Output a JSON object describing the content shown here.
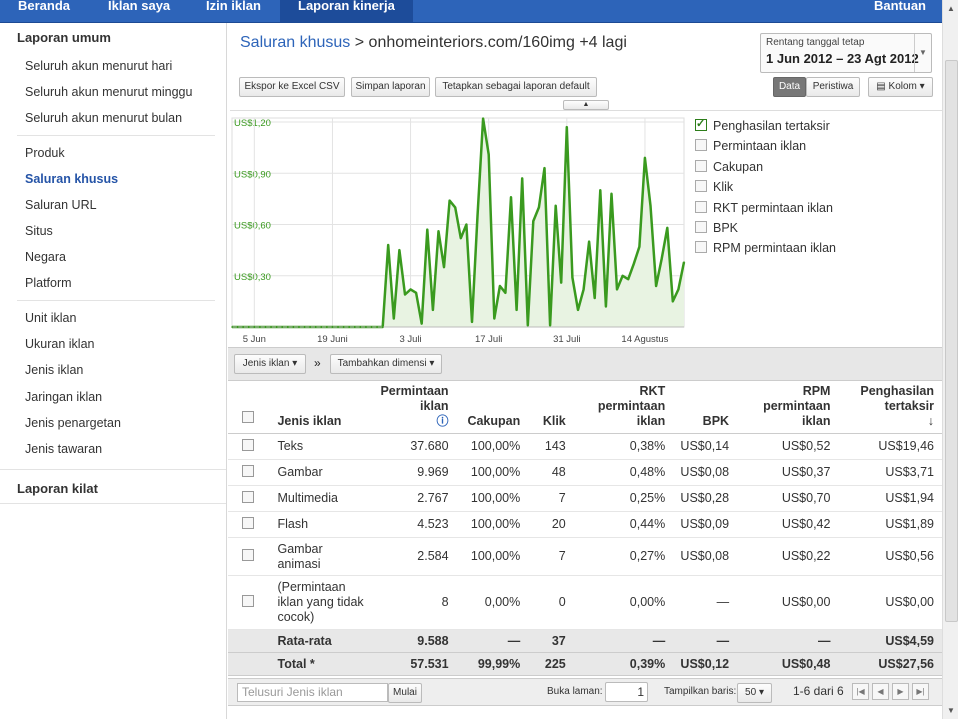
{
  "nav": {
    "tabs": [
      "Beranda",
      "Iklan saya",
      "Izin iklan",
      "Laporan kinerja"
    ],
    "help": "Bantuan"
  },
  "sidebar": {
    "heading_general": "Laporan umum",
    "items_group1": [
      "Seluruh akun menurut hari",
      "Seluruh akun menurut minggu",
      "Seluruh akun menurut bulan"
    ],
    "items_group2": [
      "Produk",
      "Saluran khusus",
      "Saluran URL",
      "Situs",
      "Negara",
      "Platform"
    ],
    "items_group3": [
      "Unit iklan",
      "Ukuran iklan",
      "Jenis iklan",
      "Jaringan iklan",
      "Jenis penargetan",
      "Jenis tawaran"
    ],
    "selected": "Saluran khusus",
    "heading_quick": "Laporan kilat"
  },
  "header": {
    "crumb_link": "Saluran khusus",
    "crumb_sep": ">",
    "crumb_rest": "onhomeinteriors.com/160img +4 lagi",
    "date_label": "Rentang tanggal tetap",
    "date_value": "1 Jun 2012 – 23 Agt 2012"
  },
  "toolbar": {
    "export": "Ekspor ke Excel CSV",
    "save": "Simpan laporan",
    "default": "Tetapkan sebagai laporan default",
    "data": "Data",
    "events": "Peristiwa",
    "columns": "Kolom"
  },
  "legend": [
    {
      "label": "Penghasilan tertaksir",
      "checked": true
    },
    {
      "label": "Permintaan iklan",
      "checked": false
    },
    {
      "label": "Cakupan",
      "checked": false
    },
    {
      "label": "Klik",
      "checked": false
    },
    {
      "label": "RKT permintaan iklan",
      "checked": false
    },
    {
      "label": "BPK",
      "checked": false
    },
    {
      "label": "RPM permintaan iklan",
      "checked": false
    }
  ],
  "chart_data": {
    "type": "area",
    "series": [
      {
        "name": "Penghasilan tertaksir",
        "color": "#3a9a1f",
        "values": [
          0,
          0,
          0,
          0,
          0,
          0,
          0,
          0,
          0,
          0,
          0,
          0,
          0,
          0,
          0,
          0,
          0,
          0,
          0,
          0,
          0,
          0,
          0,
          0,
          0,
          0,
          0,
          0,
          0.48,
          0.05,
          0.45,
          0.19,
          0.22,
          0.2,
          0.02,
          0.57,
          0.1,
          0.56,
          0.35,
          0.74,
          0.7,
          0.52,
          0.6,
          0.03,
          0.65,
          1.22,
          1.01,
          0.05,
          0.24,
          0.2,
          0.76,
          0.1,
          0.87,
          0.01,
          0.62,
          0.7,
          0.93,
          0.01,
          0.71,
          0.26,
          1.17,
          0.29,
          0.1,
          0.22,
          0.5,
          0.17,
          0.8,
          0.12,
          0.78,
          0.22,
          0.3,
          0.28,
          0.37,
          0.47,
          0.99,
          0.71,
          0.24,
          0.4,
          0.58,
          0.15,
          0.22,
          0.38
        ]
      }
    ],
    "y_ticks": [
      "US$0,30",
      "US$0,60",
      "US$0,90",
      "US$1,20"
    ],
    "y_tick_values": [
      0.3,
      0.6,
      0.9,
      1.2
    ],
    "ylim": [
      0,
      1.2
    ],
    "x_ticks": [
      "5 Jun",
      "19 Juni",
      "3 Juli",
      "17 Juli",
      "31 Juli",
      "14 Agustus"
    ],
    "x_tick_index": [
      4,
      18,
      32,
      46,
      60,
      74
    ],
    "grid": true,
    "legend": "right"
  },
  "dims": {
    "adtype": "Jenis iklan",
    "arrow": "»",
    "add": "Tambahkan dimensi"
  },
  "table": {
    "headers": [
      "Jenis iklan",
      "Permintaan iklan",
      "Cakupan",
      "Klik",
      "RKT permintaan iklan",
      "BPK",
      "RPM permintaan iklan",
      "Penghasilan tertaksir"
    ],
    "rows": [
      [
        "Teks",
        "37.680",
        "100,00%",
        "143",
        "0,38%",
        "US$0,14",
        "US$0,52",
        "US$19,46"
      ],
      [
        "Gambar",
        "9.969",
        "100,00%",
        "48",
        "0,48%",
        "US$0,08",
        "US$0,37",
        "US$3,71"
      ],
      [
        "Multimedia",
        "2.767",
        "100,00%",
        "7",
        "0,25%",
        "US$0,28",
        "US$0,70",
        "US$1,94"
      ],
      [
        "Flash",
        "4.523",
        "100,00%",
        "20",
        "0,44%",
        "US$0,09",
        "US$0,42",
        "US$1,89"
      ],
      [
        "Gambar animasi",
        "2.584",
        "100,00%",
        "7",
        "0,27%",
        "US$0,08",
        "US$0,22",
        "US$0,56"
      ],
      [
        "(Permintaan iklan yang tidak cocok)",
        "8",
        "0,00%",
        "0",
        "0,00%",
        "—",
        "US$0,00",
        "US$0,00"
      ]
    ],
    "average": [
      "Rata-rata",
      "9.588",
      "—",
      "37",
      "—",
      "—",
      "—",
      "US$4,59"
    ],
    "total": [
      "Total *",
      "57.531",
      "99,99%",
      "225",
      "0,39%",
      "US$0,12",
      "US$0,48",
      "US$27,56"
    ]
  },
  "footer": {
    "search_placeholder": "Telusuri Jenis iklan",
    "start": "Mulai",
    "go_page": "Buka laman:",
    "page": "1",
    "show_rows": "Tampilkan baris:",
    "rows": "50",
    "range": "1-6 dari 6"
  }
}
